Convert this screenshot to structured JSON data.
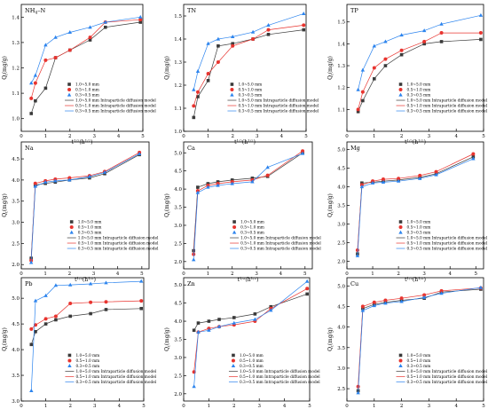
{
  "figure": {
    "legend_markers": [
      "square",
      "circle",
      "triangle"
    ],
    "legend_labels": [
      "1.0~5.0 mm",
      "0.5~1.0 mm",
      "0.3~0.5 mm",
      "1.0~5.0 mm Intraparticle diffusion model",
      "0.5~1.0 mm Intraparticle diffusion model",
      "0.3~0.5 mm Intraparticle diffusion model"
    ],
    "colors": [
      "#3a3a3a",
      "#e8342f",
      "#2c84ee"
    ]
  },
  "chart_data": [
    {
      "type": "line",
      "label": "NH4-N",
      "xlabel": "t1/2(h1/2)",
      "ylabel": "Qt(mg/g)",
      "xlim": [
        0,
        5
      ],
      "ylim": [
        0.95,
        1.45
      ],
      "xticks": [
        0,
        1,
        2,
        3,
        4,
        5
      ],
      "yticks": [
        1.0,
        1.1,
        1.2,
        1.3,
        1.4
      ],
      "legend": "bottom-right",
      "series": [
        {
          "name": "1.0~5.0 mm",
          "x": [
            0.41,
            0.58,
            1.0,
            1.41,
            2.0,
            2.83,
            3.46,
            4.9
          ],
          "y": [
            1.02,
            1.07,
            1.12,
            1.24,
            1.27,
            1.31,
            1.36,
            1.38
          ]
        },
        {
          "name": "0.5~1.0 mm",
          "x": [
            0.41,
            0.58,
            1.0,
            1.41,
            2.0,
            2.83,
            3.46,
            4.9
          ],
          "y": [
            1.08,
            1.14,
            1.23,
            1.24,
            1.27,
            1.32,
            1.38,
            1.39
          ]
        },
        {
          "name": "0.3~0.5 mm",
          "x": [
            0.41,
            0.58,
            1.0,
            1.41,
            2.0,
            2.83,
            3.46,
            4.9
          ],
          "y": [
            1.14,
            1.17,
            1.29,
            1.32,
            1.34,
            1.36,
            1.38,
            1.4
          ]
        }
      ]
    },
    {
      "type": "line",
      "label": "TN",
      "xlabel": "t1/2(h1/2)",
      "ylabel": "Qt(mg/g)",
      "xlim": [
        0,
        5
      ],
      "ylim": [
        1.0,
        1.55
      ],
      "xticks": [
        0,
        1,
        2,
        3,
        4,
        5
      ],
      "yticks": [
        1.0,
        1.1,
        1.2,
        1.3,
        1.4,
        1.5
      ],
      "legend": "bottom-right",
      "series": [
        {
          "name": "1.0~5.0 mm",
          "x": [
            0.41,
            0.58,
            1.0,
            1.41,
            2.0,
            2.83,
            3.46,
            4.9
          ],
          "y": [
            1.06,
            1.15,
            1.22,
            1.37,
            1.38,
            1.4,
            1.42,
            1.44
          ]
        },
        {
          "name": "0.5~1.0 mm",
          "x": [
            0.41,
            0.58,
            1.0,
            1.41,
            2.0,
            2.83,
            3.46,
            4.9
          ],
          "y": [
            1.11,
            1.17,
            1.25,
            1.3,
            1.37,
            1.4,
            1.44,
            1.46
          ]
        },
        {
          "name": "0.3~0.5 mm",
          "x": [
            0.41,
            0.58,
            1.0,
            1.41,
            2.0,
            2.83,
            3.46,
            4.9
          ],
          "y": [
            1.18,
            1.26,
            1.38,
            1.4,
            1.41,
            1.43,
            1.46,
            1.51
          ]
        }
      ]
    },
    {
      "type": "line",
      "label": "TP",
      "xlabel": "t1/2(h1/2)",
      "ylabel": "Qt(mg/g)",
      "xlim": [
        0,
        5
      ],
      "ylim": [
        1.0,
        1.58
      ],
      "xticks": [
        0,
        1,
        2,
        3,
        4,
        5
      ],
      "yticks": [
        1.1,
        1.2,
        1.3,
        1.4,
        1.5
      ],
      "legend": "bottom-right",
      "series": [
        {
          "name": "1.0~5.0 mm",
          "x": [
            0.41,
            0.58,
            1.0,
            1.41,
            2.0,
            2.83,
            3.46,
            4.9
          ],
          "y": [
            1.09,
            1.14,
            1.24,
            1.3,
            1.35,
            1.4,
            1.41,
            1.42
          ]
        },
        {
          "name": "0.5~1.0 mm",
          "x": [
            0.41,
            0.58,
            1.0,
            1.41,
            2.0,
            2.83,
            3.46,
            4.9
          ],
          "y": [
            1.1,
            1.18,
            1.29,
            1.33,
            1.37,
            1.41,
            1.45,
            1.45
          ]
        },
        {
          "name": "0.3~0.5 mm",
          "x": [
            0.41,
            0.58,
            1.0,
            1.41,
            2.0,
            2.83,
            3.46,
            4.9
          ],
          "y": [
            1.19,
            1.28,
            1.39,
            1.41,
            1.44,
            1.46,
            1.49,
            1.53
          ]
        }
      ]
    },
    {
      "type": "line",
      "label": "Na",
      "xlabel": "t1/2(h1/2)",
      "ylabel": "Qt(mg/g)",
      "xlim": [
        0,
        5.3
      ],
      "ylim": [
        1.9,
        4.9
      ],
      "xticks": [
        0,
        1,
        2,
        3,
        4,
        5
      ],
      "yticks": [
        2.0,
        2.5,
        3.0,
        3.5,
        4.0,
        4.5
      ],
      "legend": "bottom-right",
      "series": [
        {
          "name": "1.0~5.0 mm",
          "x": [
            0.41,
            0.58,
            1.0,
            1.41,
            2.0,
            2.83,
            3.46,
            4.9
          ],
          "y": [
            2.15,
            3.88,
            3.92,
            3.95,
            4.0,
            4.05,
            4.15,
            4.6
          ]
        },
        {
          "name": "0.5~1.0 mm",
          "x": [
            0.41,
            0.58,
            1.0,
            1.41,
            2.0,
            2.83,
            3.46,
            4.9
          ],
          "y": [
            2.1,
            3.92,
            3.98,
            4.02,
            4.05,
            4.1,
            4.2,
            4.65
          ]
        },
        {
          "name": "0.3~0.5 mm",
          "x": [
            0.41,
            0.58,
            1.0,
            1.41,
            2.0,
            2.83,
            3.46,
            4.9
          ],
          "y": [
            2.05,
            3.85,
            3.95,
            3.98,
            4.0,
            4.08,
            4.18,
            4.62
          ]
        }
      ]
    },
    {
      "type": "line",
      "label": "Ca",
      "xlabel": "t1/2(h1/2)",
      "ylabel": "Qt(mg/g)",
      "xlim": [
        0,
        5.3
      ],
      "ylim": [
        1.8,
        5.3
      ],
      "xticks": [
        0,
        1,
        2,
        3,
        4,
        5
      ],
      "yticks": [
        2.0,
        2.5,
        3.0,
        3.5,
        4.0,
        4.5,
        5.0
      ],
      "legend": "bottom-right",
      "series": [
        {
          "name": "1.0~5.0 mm",
          "x": [
            0.41,
            0.58,
            1.0,
            1.41,
            2.0,
            2.83,
            3.46,
            4.9
          ],
          "y": [
            2.3,
            4.05,
            4.15,
            4.2,
            4.25,
            4.3,
            4.35,
            5.0
          ]
        },
        {
          "name": "0.5~1.0 mm",
          "x": [
            0.41,
            0.58,
            1.0,
            1.41,
            2.0,
            2.83,
            3.46,
            4.9
          ],
          "y": [
            2.2,
            3.95,
            4.1,
            4.15,
            4.2,
            4.25,
            4.38,
            5.05
          ]
        },
        {
          "name": "0.3~0.5 mm",
          "x": [
            0.41,
            0.58,
            1.0,
            1.41,
            2.0,
            2.83,
            3.46,
            4.9
          ],
          "y": [
            2.05,
            3.9,
            4.05,
            4.1,
            4.15,
            4.2,
            4.6,
            4.98
          ]
        }
      ]
    },
    {
      "type": "line",
      "label": "Mg",
      "xlabel": "t1/2(h1/2)",
      "ylabel": "Qt(mg/g)",
      "xlim": [
        0,
        5.3
      ],
      "ylim": [
        1.8,
        5.2
      ],
      "xticks": [
        0,
        1,
        2,
        3,
        4,
        5
      ],
      "yticks": [
        2.0,
        2.5,
        3.0,
        3.5,
        4.0,
        4.5,
        5.0
      ],
      "legend": "bottom-right",
      "series": [
        {
          "name": "1.0~5.0 mm",
          "x": [
            0.41,
            0.58,
            1.0,
            1.41,
            2.0,
            2.83,
            3.46,
            4.9
          ],
          "y": [
            2.2,
            4.1,
            4.12,
            4.15,
            4.18,
            4.25,
            4.35,
            4.8
          ]
        },
        {
          "name": "0.5~1.0 mm",
          "x": [
            0.41,
            0.58,
            1.0,
            1.41,
            2.0,
            2.83,
            3.46,
            4.9
          ],
          "y": [
            2.3,
            4.05,
            4.15,
            4.2,
            4.22,
            4.3,
            4.4,
            4.88
          ]
        },
        {
          "name": "0.3~0.5 mm",
          "x": [
            0.41,
            0.58,
            1.0,
            1.41,
            2.0,
            2.83,
            3.46,
            4.9
          ],
          "y": [
            2.15,
            4.0,
            4.1,
            4.12,
            4.15,
            4.22,
            4.32,
            4.75
          ]
        }
      ]
    },
    {
      "type": "line",
      "label": "Pb",
      "xlabel": "t1/2(h1/2)",
      "ylabel": "Qt(mg/g)",
      "xlim": [
        0,
        5
      ],
      "ylim": [
        3.0,
        5.4
      ],
      "xticks": [
        0,
        1,
        2,
        3,
        4,
        5
      ],
      "yticks": [
        3.0,
        3.5,
        4.0,
        4.5,
        5.0
      ],
      "legend": "bottom-right",
      "series": [
        {
          "name": "1.0~5.0 mm",
          "x": [
            0.41,
            0.58,
            1.0,
            1.41,
            2.0,
            2.83,
            3.46,
            4.9
          ],
          "y": [
            4.1,
            4.35,
            4.5,
            4.58,
            4.65,
            4.7,
            4.78,
            4.8
          ]
        },
        {
          "name": "0.5~1.0 mm",
          "x": [
            0.41,
            0.58,
            1.0,
            1.41,
            2.0,
            2.83,
            3.46,
            4.9
          ],
          "y": [
            4.4,
            4.48,
            4.6,
            4.65,
            4.9,
            4.92,
            4.93,
            4.95
          ]
        },
        {
          "name": "0.3~0.5 mm",
          "x": [
            0.41,
            0.58,
            1.0,
            1.41,
            2.0,
            2.83,
            3.46,
            4.9
          ],
          "y": [
            3.2,
            4.95,
            5.05,
            5.25,
            5.26,
            5.28,
            5.3,
            5.33
          ]
        }
      ]
    },
    {
      "type": "line",
      "label": "Zn",
      "xlabel": "t1/2(h1/2)",
      "ylabel": "Qt(mg/g)",
      "xlim": [
        0,
        5
      ],
      "ylim": [
        1.8,
        5.2
      ],
      "xticks": [
        0,
        1,
        2,
        3,
        4,
        5
      ],
      "yticks": [
        2.0,
        2.5,
        3.0,
        3.5,
        4.0,
        4.5,
        5.0
      ],
      "legend": "bottom-right",
      "series": [
        {
          "name": "1.0~5.0 mm",
          "x": [
            0.41,
            0.58,
            1.0,
            1.41,
            2.0,
            2.83,
            3.46,
            4.9
          ],
          "y": [
            3.75,
            3.95,
            4.0,
            4.05,
            4.1,
            4.2,
            4.4,
            4.75
          ]
        },
        {
          "name": "0.5~1.0 mm",
          "x": [
            0.41,
            0.58,
            1.0,
            1.41,
            2.0,
            2.83,
            3.46,
            4.9
          ],
          "y": [
            2.6,
            3.7,
            3.8,
            3.85,
            3.9,
            4.0,
            4.35,
            4.9
          ]
        },
        {
          "name": "0.3~0.5 mm",
          "x": [
            0.41,
            0.58,
            1.0,
            1.41,
            2.0,
            2.83,
            3.46,
            4.9
          ],
          "y": [
            2.2,
            3.7,
            3.75,
            3.85,
            3.95,
            4.05,
            4.3,
            5.1
          ]
        }
      ]
    },
    {
      "type": "line",
      "label": "Cu",
      "xlabel": "t1/2(h1/2)",
      "ylabel": "Qt(mg/g)",
      "xlim": [
        0,
        5
      ],
      "ylim": [
        2.2,
        5.2
      ],
      "xticks": [
        0,
        1,
        2,
        3,
        4,
        5
      ],
      "yticks": [
        2.5,
        3.0,
        3.5,
        4.0,
        4.5,
        5.0
      ],
      "legend": "bottom-right",
      "series": [
        {
          "name": "1.0~5.0 mm",
          "x": [
            0.41,
            0.58,
            1.0,
            1.41,
            2.0,
            2.83,
            3.46,
            4.9
          ],
          "y": [
            2.45,
            4.45,
            4.55,
            4.6,
            4.65,
            4.7,
            4.85,
            4.92
          ]
        },
        {
          "name": "0.5~1.0 mm",
          "x": [
            0.41,
            0.58,
            1.0,
            1.41,
            2.0,
            2.83,
            3.46,
            4.9
          ],
          "y": [
            2.55,
            4.5,
            4.6,
            4.65,
            4.7,
            4.78,
            4.88,
            4.95
          ]
        },
        {
          "name": "0.3~0.5 mm",
          "x": [
            0.41,
            0.58,
            1.0,
            1.41,
            2.0,
            2.83,
            3.46,
            4.9
          ],
          "y": [
            2.4,
            4.4,
            4.52,
            4.58,
            4.62,
            4.72,
            4.82,
            4.96
          ]
        }
      ]
    }
  ]
}
